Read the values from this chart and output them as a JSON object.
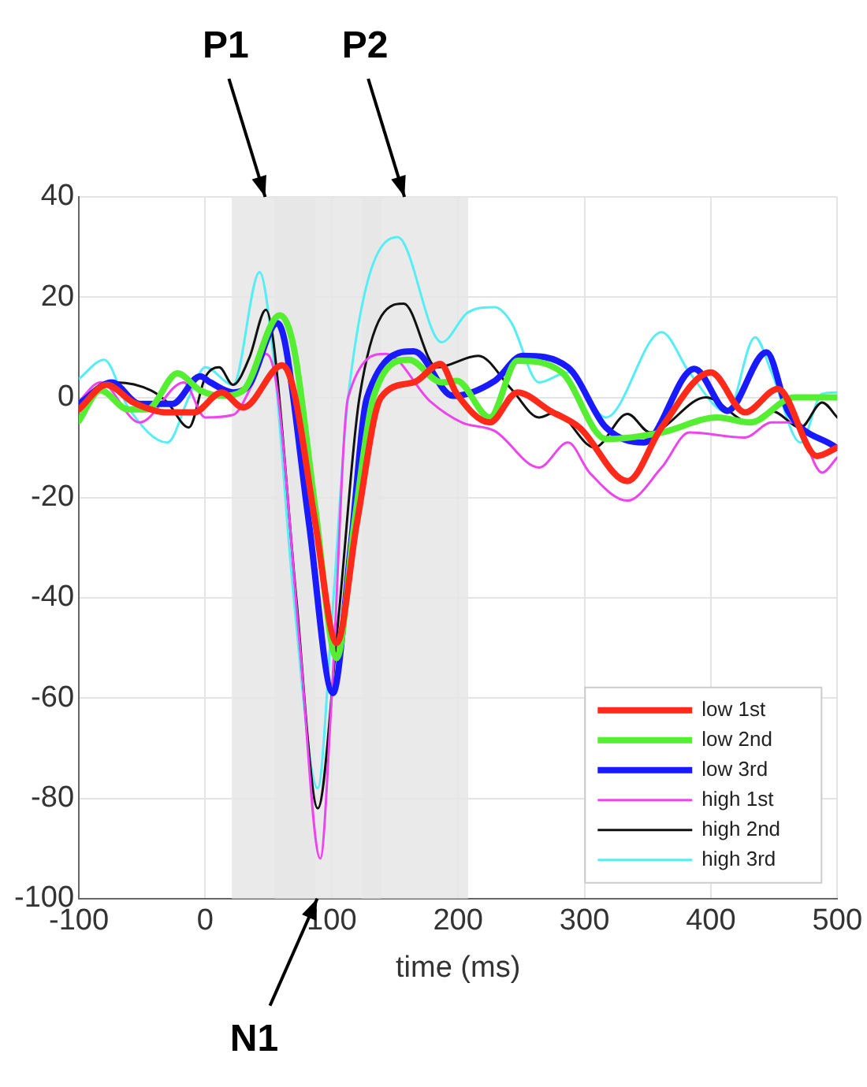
{
  "chart_data": {
    "type": "line",
    "xlabel": "time (ms)",
    "xlim": [
      -100,
      500
    ],
    "xticks": [
      -100,
      0,
      100,
      200,
      300,
      400,
      500
    ],
    "ylim": [
      -100,
      40
    ],
    "yticks": [
      -100,
      -80,
      -60,
      -40,
      -20,
      0,
      20,
      40
    ],
    "grid": true,
    "legend": "bottom right",
    "marker": "none",
    "line_style": "solid",
    "bands": [
      {
        "axis": "x",
        "from": 21,
        "to": 87,
        "label": "P1",
        "color": "#e6e6e6"
      },
      {
        "axis": "x",
        "from": 124,
        "to": 208,
        "label": "P2",
        "color": "#e6e6e6"
      },
      {
        "axis": "x",
        "from": 55,
        "to": 139,
        "label": "N1",
        "color": "#e6e6e6"
      }
    ],
    "series": [
      {
        "name": "low 1st",
        "color": "#ff2a1a",
        "x": [
          -100,
          -78,
          -57,
          -30,
          -9,
          13,
          30,
          61,
          70,
          87,
          104,
          120,
          139,
          165,
          186,
          199,
          225,
          247,
          273,
          296,
          334,
          361,
          400,
          427,
          453,
          484,
          500
        ],
        "values": [
          -2.4,
          2.5,
          -1,
          -3,
          -3,
          1,
          -2,
          6.4,
          1.4,
          -25,
          -49,
          -25,
          0,
          3,
          6.7,
          0.7,
          -5,
          1,
          -2.7,
          -6,
          -16.7,
          -6,
          5,
          -3,
          1.7,
          -11.7,
          -10
        ]
      },
      {
        "name": "low 2nd",
        "color": "#55ee33",
        "x": [
          -100,
          -83,
          -61,
          -46,
          -22,
          -4,
          13,
          30,
          59,
          70,
          87,
          104,
          118,
          133,
          161,
          187,
          199,
          225,
          247,
          282,
          317,
          361,
          405,
          431,
          466,
          500
        ],
        "values": [
          -4.7,
          1.4,
          -2.4,
          -2.4,
          4.8,
          1.4,
          0.3,
          1.4,
          16.4,
          10,
          -22,
          -52,
          -25,
          0,
          7.5,
          3,
          3.3,
          -4,
          7.3,
          5,
          -8.3,
          -7,
          -4,
          -5,
          0,
          0
        ]
      },
      {
        "name": "low 3rd",
        "color": "#1a1aff",
        "x": [
          -100,
          -74,
          -52,
          -26,
          -4,
          4,
          22,
          35,
          57,
          63,
          82,
          101,
          115,
          128,
          165,
          196,
          229,
          251,
          287,
          317,
          347,
          387,
          413,
          444,
          461,
          499
        ],
        "values": [
          -1.3,
          3,
          -1.3,
          -1.3,
          4.2,
          3,
          1,
          2.6,
          14.8,
          11,
          -25,
          -59,
          -30,
          0,
          9.2,
          0.3,
          3.3,
          8.3,
          6,
          -6,
          -9,
          5.7,
          -2.7,
          9,
          -2.7,
          -10
        ]
      },
      {
        "name": "high 1st",
        "color": "#ee44ee",
        "x": [
          -100,
          -83,
          -52,
          -17,
          0,
          22,
          37,
          48,
          57,
          75,
          91,
          100,
          113,
          143,
          178,
          203,
          229,
          264,
          287,
          304,
          334,
          361,
          383,
          427,
          448,
          466,
          488,
          500
        ],
        "values": [
          -0.8,
          3,
          -5,
          3,
          -4,
          -3.5,
          2.5,
          8.7,
          1.4,
          -50,
          -92,
          -60,
          0,
          8.7,
          -0.8,
          -5,
          -6.7,
          -14,
          -9,
          -15,
          -20.6,
          -14,
          -7,
          -8,
          -5,
          -5,
          -15,
          -12
        ]
      },
      {
        "name": "high 2nd",
        "color": "#111111",
        "x": [
          -100,
          -70,
          -43,
          -30,
          -13,
          0,
          11,
          22,
          35,
          48,
          54,
          72,
          89,
          105,
          122,
          157,
          183,
          216,
          242,
          264,
          277,
          308,
          334,
          352,
          396,
          431,
          448,
          471,
          488,
          500
        ],
        "values": [
          -2.4,
          3,
          1.4,
          -1,
          -6,
          4,
          6,
          2.5,
          8,
          17.5,
          11,
          -40,
          -82,
          -45,
          0,
          18.7,
          6,
          8.3,
          1.7,
          -4,
          -3,
          -10,
          -3.3,
          -7,
          0,
          -5,
          -2.7,
          -6,
          -1,
          -4
        ]
      },
      {
        "name": "high 3rd",
        "color": "#55eef5",
        "x": [
          -100,
          -80,
          -61,
          -30,
          -13,
          0,
          22,
          43,
          54,
          70,
          89,
          100,
          113,
          152,
          187,
          208,
          229,
          242,
          264,
          287,
          317,
          361,
          383,
          413,
          435,
          448,
          471,
          488,
          500
        ],
        "values": [
          3.7,
          7.5,
          -2,
          -9,
          0,
          6,
          2.5,
          25,
          8,
          -40,
          -78,
          -45,
          0,
          32,
          11,
          17,
          18,
          15,
          3,
          5,
          -4,
          13,
          5,
          -3,
          12,
          5,
          -9,
          0.7,
          1
        ]
      }
    ]
  }
}
